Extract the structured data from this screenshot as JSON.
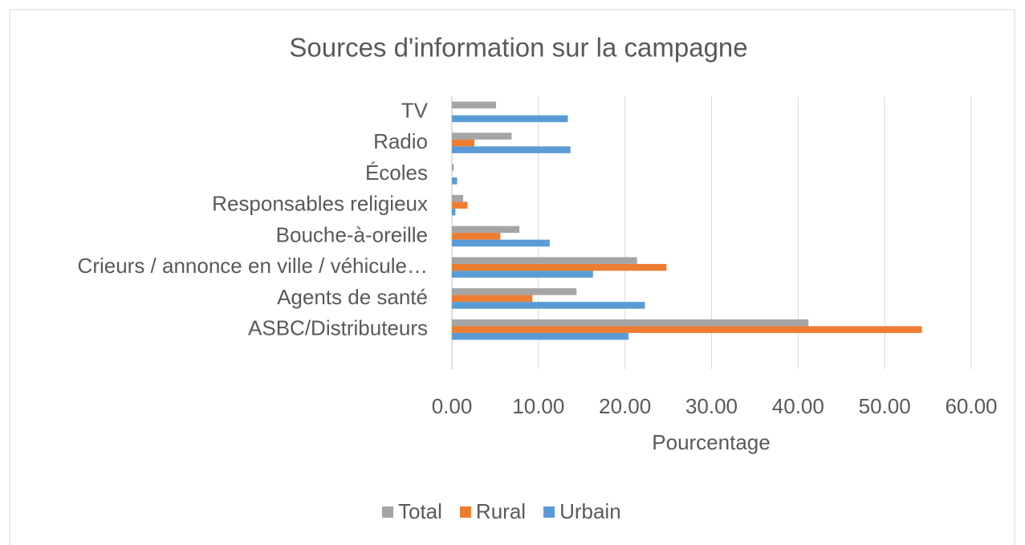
{
  "chart_data": {
    "type": "hbar",
    "title": "Sources d'information sur la campagne",
    "x_label": "Pourcentage",
    "categories": [
      "ASBC/Distributeurs",
      "Agents de santé",
      "Crieurs / annonce en ville / véhicule…",
      "Bouche-à-oreille",
      "Responsables religieux",
      "Écoles",
      "Radio",
      "TV"
    ],
    "series": [
      {
        "name": "Total",
        "color": "#a5a5a5",
        "values": [
          41.2,
          14.4,
          21.4,
          7.8,
          1.3,
          0.2,
          6.9,
          5.1
        ]
      },
      {
        "name": "Rural",
        "color": "#ed7d31",
        "values": [
          54.3,
          9.3,
          24.8,
          5.6,
          1.8,
          0,
          2.6,
          0
        ]
      },
      {
        "name": "Urbain",
        "color": "#5b9bd5",
        "values": [
          20.4,
          22.3,
          16.3,
          11.3,
          0.4,
          0.6,
          13.7,
          13.4
        ]
      }
    ],
    "xlim": [
      0,
      60
    ],
    "xticks": [
      {
        "value": 0,
        "label": "0.00"
      },
      {
        "value": 10,
        "label": "10.00"
      },
      {
        "value": 20,
        "label": "20.00"
      },
      {
        "value": 30,
        "label": "30.00"
      },
      {
        "value": 40,
        "label": "40.00"
      },
      {
        "value": 50,
        "label": "50.00"
      },
      {
        "value": 60,
        "label": "60.00"
      }
    ],
    "grid": true,
    "legend": "bottom"
  }
}
